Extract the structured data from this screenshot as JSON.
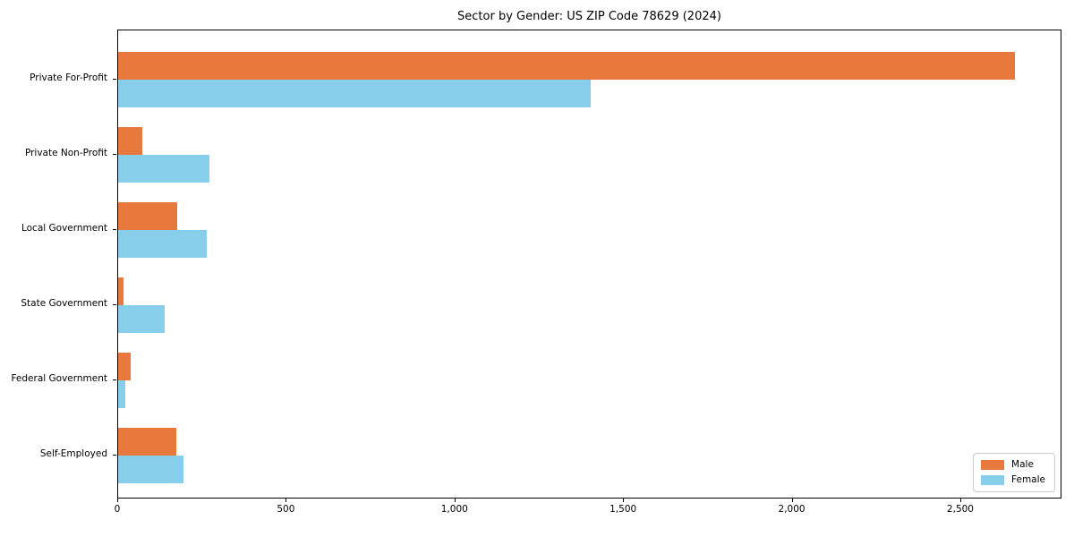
{
  "chart_data": {
    "type": "bar",
    "orientation": "horizontal",
    "title": "Sector by Gender: US ZIP Code 78629 (2024)",
    "categories": [
      "Private For-Profit",
      "Private Non-Profit",
      "Local Government",
      "State Government",
      "Federal Government",
      "Self-Employed"
    ],
    "series": [
      {
        "name": "Male",
        "color": "#e8793c",
        "values": [
          2660,
          72,
          175,
          15,
          38,
          172
        ]
      },
      {
        "name": "Female",
        "color": "#87ceeb",
        "values": [
          1400,
          270,
          263,
          138,
          20,
          194
        ]
      }
    ],
    "xlabel": "",
    "ylabel": "",
    "xlim": [
      0,
      2800
    ],
    "x_ticks": [
      0,
      500,
      1000,
      1500,
      2000,
      2500
    ],
    "x_tick_labels": [
      "0",
      "500",
      "1,000",
      "1,500",
      "2,000",
      "2,500"
    ],
    "legend_position": "lower right",
    "grid": false,
    "background_color": "#ffffff",
    "frame_color": "#000000"
  }
}
